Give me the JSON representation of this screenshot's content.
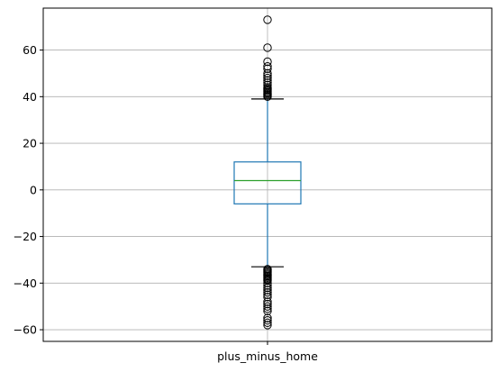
{
  "chart_data": {
    "type": "box",
    "title": "",
    "xlabel": "",
    "ylabel": "",
    "categories": [
      "plus_minus_home"
    ],
    "ylim": [
      -65,
      78
    ],
    "yticks": [
      -60,
      -40,
      -20,
      0,
      20,
      40,
      60
    ],
    "grid": true,
    "colors": {
      "box": "#1f77b4",
      "median": "#2ca02c",
      "whisker_cap": "#000000",
      "flier": "#000000",
      "grid": "#b0b0b0"
    },
    "boxes": [
      {
        "name": "plus_minus_home",
        "q1": -6,
        "median": 4,
        "q3": 12,
        "whisker_low": -33,
        "whisker_high": 39,
        "fliers_high": [
          40,
          40.5,
          41,
          41.5,
          42,
          42.5,
          43,
          43.5,
          44,
          45,
          46,
          47,
          48,
          49,
          50,
          52,
          53,
          55,
          61,
          73
        ],
        "fliers_low": [
          -34,
          -34.5,
          -35,
          -35.5,
          -36,
          -36.5,
          -37,
          -37.5,
          -38,
          -38.5,
          -39,
          -40,
          -41,
          -42,
          -43,
          -44,
          -45,
          -46,
          -48,
          -49,
          -50,
          -51,
          -52,
          -55,
          -56,
          -57,
          -58
        ]
      }
    ]
  }
}
